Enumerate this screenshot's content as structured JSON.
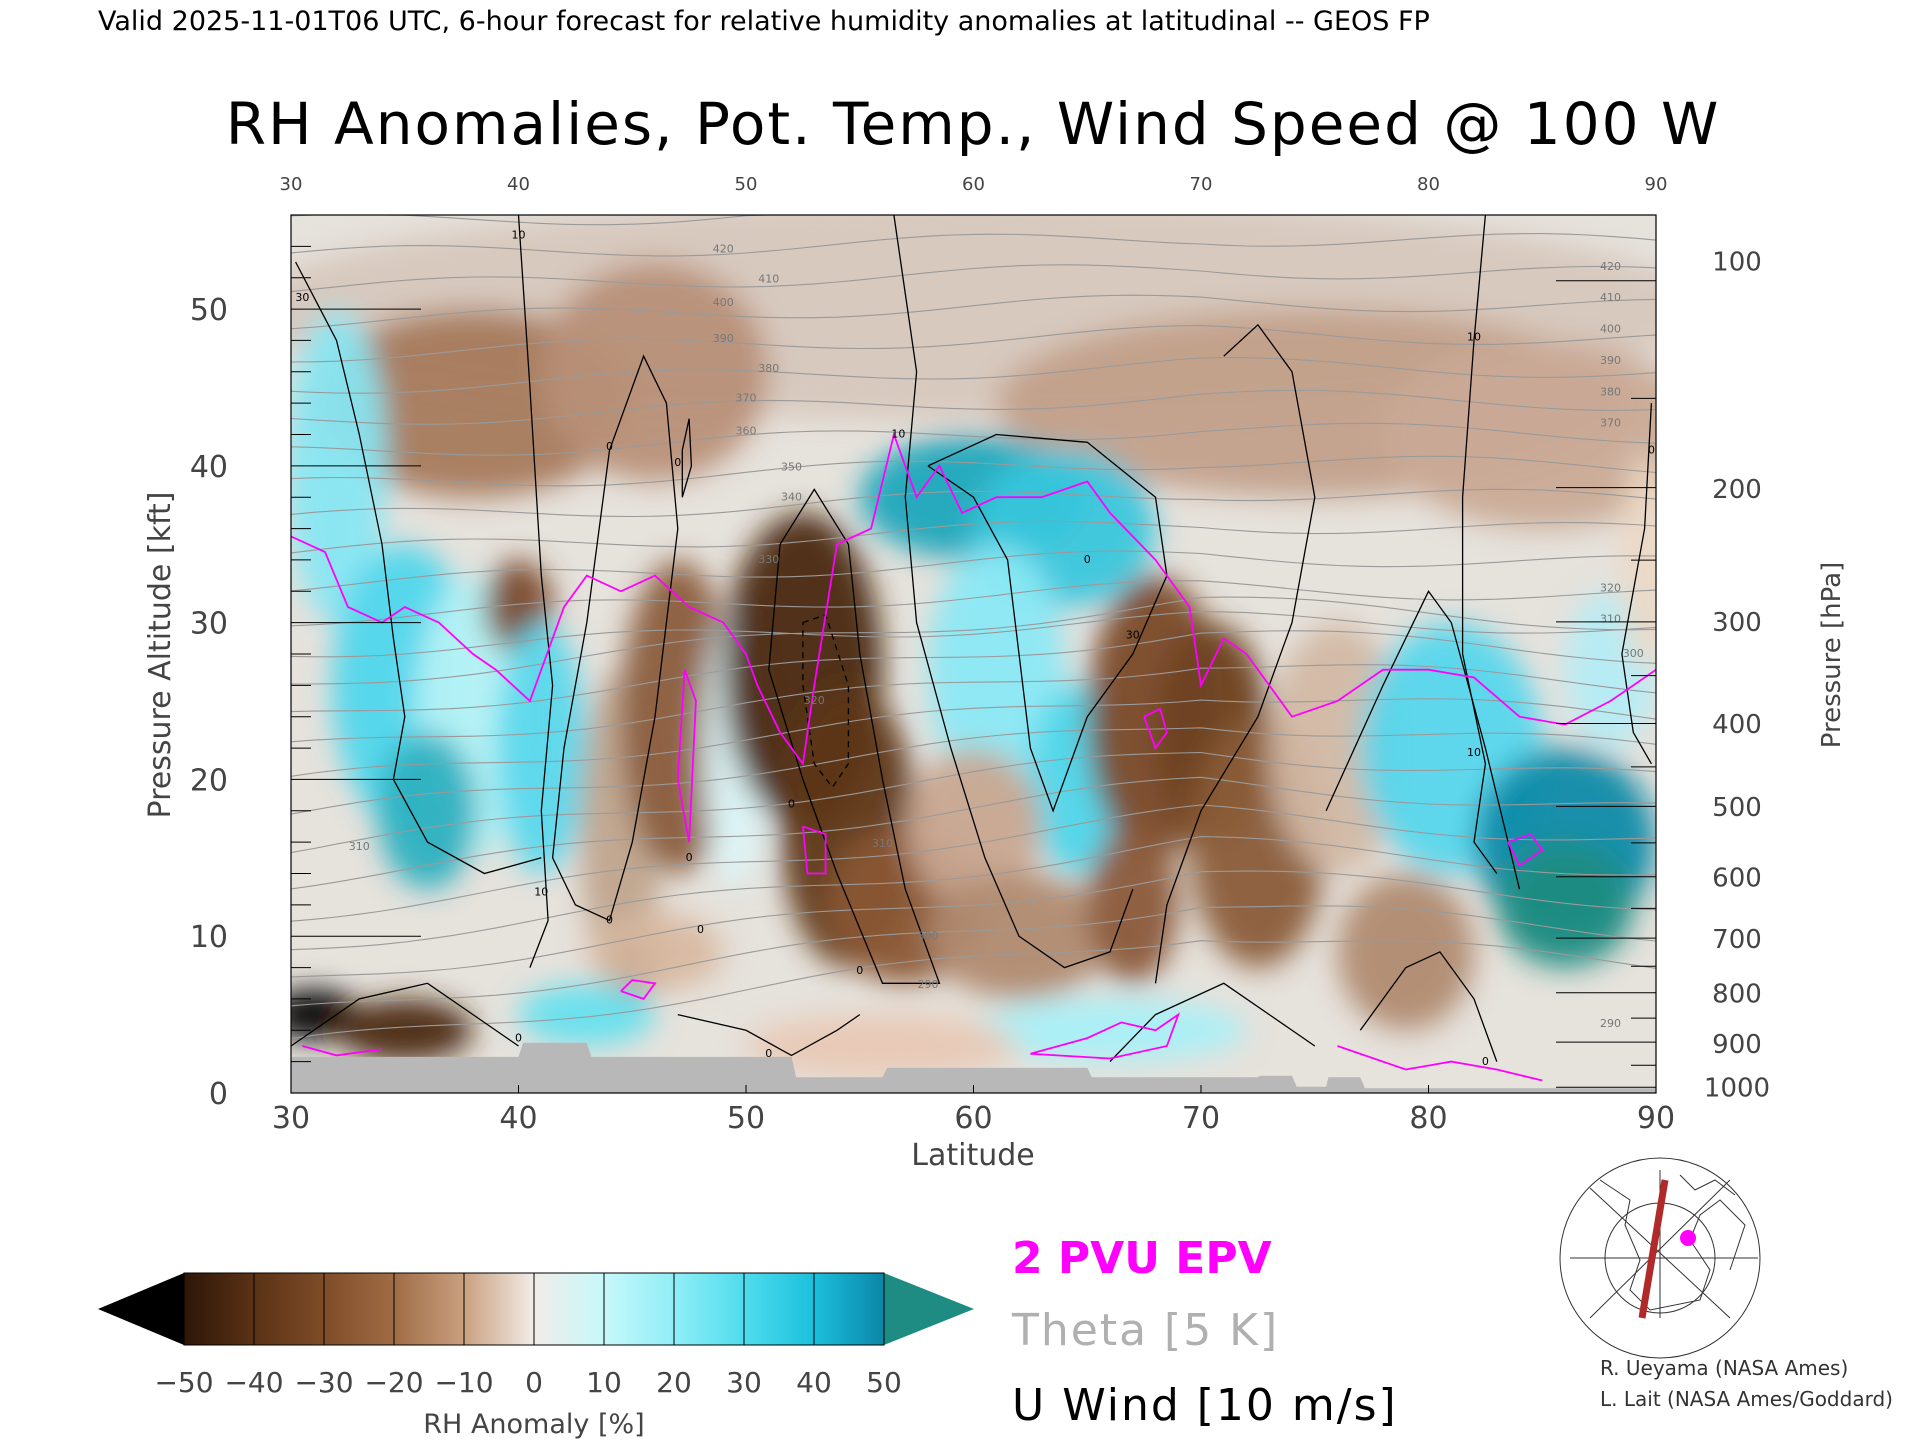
{
  "header": {
    "valid_line": "Valid 2025-11-01T06 UTC, 6-hour forecast for relative humidity anomalies at latitudinal -- GEOS FP",
    "main_title": "RH Anomalies, Pot. Temp., Wind Speed @ 100 W"
  },
  "chart_data": {
    "type": "heatmap",
    "xlabel": "Latitude",
    "ylabel": "Pressure Altitude [kft]",
    "ylabel_right": "Pressure [hPa]",
    "xlim": [
      30,
      90
    ],
    "ylim": [
      0,
      56
    ],
    "x_ticks_bottom": [
      "30",
      "40",
      "50",
      "60",
      "70",
      "80",
      "90"
    ],
    "x_ticks_top": [
      "30",
      "40",
      "50",
      "60",
      "70",
      "80",
      "90"
    ],
    "y_ticks": [
      "0",
      "10",
      "20",
      "30",
      "40",
      "50"
    ],
    "pressure_ticks": [
      {
        "label": "100",
        "kft": 53.1
      },
      {
        "label": "200",
        "kft": 38.6
      },
      {
        "label": "300",
        "kft": 30.1
      },
      {
        "label": "400",
        "kft": 23.6
      },
      {
        "label": "500",
        "kft": 18.3
      },
      {
        "label": "600",
        "kft": 13.8
      },
      {
        "label": "700",
        "kft": 9.9
      },
      {
        "label": "800",
        "kft": 6.4
      },
      {
        "label": "900",
        "kft": 3.2
      },
      {
        "label": "1000",
        "kft": 0.4
      }
    ],
    "theta_labels": [
      {
        "text": "420",
        "x": 49,
        "y": 53.6
      },
      {
        "text": "410",
        "x": 51,
        "y": 51.7
      },
      {
        "text": "400",
        "x": 49,
        "y": 50.2
      },
      {
        "text": "390",
        "x": 49,
        "y": 47.9
      },
      {
        "text": "380",
        "x": 51,
        "y": 46.0
      },
      {
        "text": "370",
        "x": 50,
        "y": 44.1
      },
      {
        "text": "360",
        "x": 50,
        "y": 42.0
      },
      {
        "text": "350",
        "x": 52,
        "y": 39.7
      },
      {
        "text": "340",
        "x": 52,
        "y": 37.8
      },
      {
        "text": "330",
        "x": 51,
        "y": 33.8
      },
      {
        "text": "320",
        "x": 53,
        "y": 24.8
      },
      {
        "text": "310",
        "x": 56,
        "y": 15.7
      },
      {
        "text": "300",
        "x": 58,
        "y": 9.8
      },
      {
        "text": "290",
        "x": 58,
        "y": 6.7
      },
      {
        "text": "310",
        "x": 33,
        "y": 15.5
      },
      {
        "text": "420",
        "x": 88,
        "y": 52.5
      },
      {
        "text": "410",
        "x": 88,
        "y": 50.5
      },
      {
        "text": "400",
        "x": 88,
        "y": 48.5
      },
      {
        "text": "390",
        "x": 88,
        "y": 46.5
      },
      {
        "text": "380",
        "x": 88,
        "y": 44.5
      },
      {
        "text": "370",
        "x": 88,
        "y": 42.5
      },
      {
        "text": "320",
        "x": 88,
        "y": 32.0
      },
      {
        "text": "310",
        "x": 88,
        "y": 30.0
      },
      {
        "text": "300",
        "x": 89,
        "y": 27.8
      },
      {
        "text": "290",
        "x": 88,
        "y": 4.2
      }
    ],
    "u_labels": [
      {
        "text": "10",
        "x": 40,
        "y": 54.5
      },
      {
        "text": "30",
        "x": 30.5,
        "y": 50.5
      },
      {
        "text": "0",
        "x": 44,
        "y": 41.0
      },
      {
        "text": "0",
        "x": 47,
        "y": 40.0
      },
      {
        "text": "10",
        "x": 56.7,
        "y": 41.8
      },
      {
        "text": "0",
        "x": 65,
        "y": 33.8
      },
      {
        "text": "30",
        "x": 67,
        "y": 29.0
      },
      {
        "text": "10",
        "x": 82,
        "y": 48.0
      },
      {
        "text": "10",
        "x": 82,
        "y": 21.5
      },
      {
        "text": "0",
        "x": 89.8,
        "y": 40.8
      },
      {
        "text": "0",
        "x": 52,
        "y": 18.2
      },
      {
        "text": "0",
        "x": 47.5,
        "y": 14.8
      },
      {
        "text": "10",
        "x": 41,
        "y": 12.6
      },
      {
        "text": "0",
        "x": 44,
        "y": 10.8
      },
      {
        "text": "0",
        "x": 48,
        "y": 10.2
      },
      {
        "text": "0",
        "x": 55,
        "y": 7.6
      },
      {
        "text": "0",
        "x": 51,
        "y": 2.3
      },
      {
        "text": "0",
        "x": 40,
        "y": 3.3
      },
      {
        "text": "0",
        "x": 82.5,
        "y": 1.8
      }
    ],
    "colorbar": {
      "label": "RH Anomaly [%]",
      "ticks": [
        "−50",
        "−40",
        "−30",
        "−20",
        "−10",
        "0",
        "10",
        "20",
        "30",
        "40",
        "50"
      ],
      "colors": [
        "#3a1e0c",
        "#5a3216",
        "#7e4c28",
        "#a06c46",
        "#c9a080",
        "#ead8c8",
        "#d4fbfc",
        "#a8f2f8",
        "#66e2f0",
        "#25c9e2",
        "#0e8fb0"
      ],
      "under_color": "#000000",
      "over_color": "#1e8c82"
    },
    "legend": {
      "epv": "2 PVU EPV",
      "theta": "Theta [5 K]",
      "wind": "U Wind [10 m/s]"
    },
    "colors": {
      "epv": "#ff00ff",
      "theta": "#aaaaaa",
      "wind": "#000000",
      "ground": "#b8b8b8"
    }
  },
  "credits": {
    "line1": "R. Ueyama (NASA Ames)",
    "line2": "L. Lait (NASA Ames/Goddard)"
  }
}
